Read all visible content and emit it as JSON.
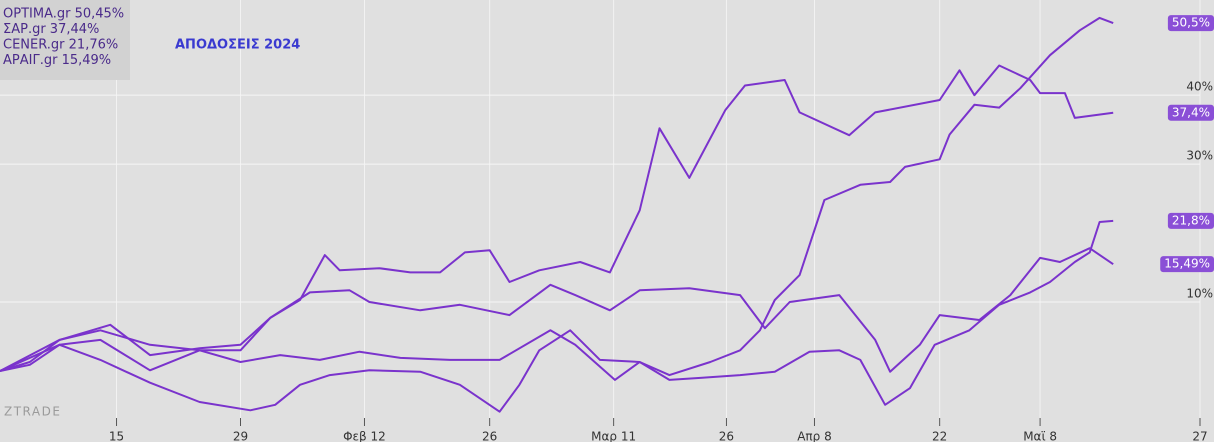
{
  "chart_data": {
    "type": "line",
    "title": "ΑΠΟΔΟΣΕΙΣ 2024",
    "watermark": "ZTRADE",
    "xlim": [
      0,
      96.8
    ],
    "ylim": [
      -10.3,
      53.8
    ],
    "xticks": [
      {
        "value": 9.4,
        "label": "15"
      },
      {
        "value": 19.4,
        "label": "29"
      },
      {
        "value": 29.4,
        "label": "Φεβ 12"
      },
      {
        "value": 39.5,
        "label": "26"
      },
      {
        "value": 49.5,
        "label": "Μαρ 11"
      },
      {
        "value": 58.6,
        "label": "26"
      },
      {
        "value": 65.7,
        "label": "Απρ 8"
      },
      {
        "value": 75.8,
        "label": "22"
      },
      {
        "value": 83.9,
        "label": "Μαϊ 8"
      },
      {
        "value": 96.8,
        "label": "27"
      }
    ],
    "yticks": [
      {
        "value": 10,
        "label": "10%"
      },
      {
        "value": 30,
        "label": "30%"
      },
      {
        "value": 40,
        "label": "40%"
      }
    ],
    "grid": true,
    "legend": "top-left",
    "series": [
      {
        "name": "OPTIMA.gr 50,45%",
        "color": "#7a33cc",
        "end_label": "50,5%",
        "x": [
          0,
          2.4,
          4.8,
          8.1,
          12.1,
          16.1,
          19.4,
          22.6,
          25.8,
          29,
          32.3,
          36.3,
          40.3,
          44.4,
          46.4,
          49.6,
          51.6,
          54,
          57.3,
          59.7,
          61.3,
          62.5,
          64.5,
          66.5,
          69.4,
          71.8,
          73,
          75.8,
          76.6,
          78.6,
          80.6,
          82.3,
          84.7,
          87.1,
          88.7,
          89.8
        ],
        "values": [
          0,
          0.9,
          3.8,
          4.5,
          0.1,
          3.0,
          1.3,
          2.3,
          1.6,
          2.8,
          1.9,
          1.6,
          1.6,
          5.9,
          3.8,
          -1.3,
          1.3,
          -0.6,
          1.3,
          3.0,
          5.9,
          10.3,
          13.9,
          24.8,
          27.0,
          27.4,
          29.6,
          30.7,
          34.3,
          38.6,
          38.2,
          41.0,
          45.8,
          49.4,
          51.2,
          50.45
        ]
      },
      {
        "name": "ΣΑΡ.gr 37,44%",
        "color": "#7a33cc",
        "end_label": "37,4%",
        "x": [
          0,
          2.4,
          4.8,
          8.1,
          12.1,
          16.1,
          19.4,
          21.8,
          24.2,
          26.2,
          27.4,
          30.6,
          33.1,
          35.5,
          37.5,
          39.5,
          41.1,
          43.5,
          46.8,
          49.2,
          51.6,
          53.2,
          55.6,
          58.5,
          60.1,
          63.3,
          64.5,
          68.5,
          70.6,
          75.8,
          77.4,
          78.6,
          80.6,
          83.1,
          83.9,
          85.9,
          86.7,
          89.8
        ],
        "values": [
          0,
          1.3,
          4.5,
          5.9,
          3.8,
          3.0,
          3.0,
          7.7,
          10.3,
          16.8,
          14.6,
          14.9,
          14.3,
          14.3,
          17.2,
          17.5,
          12.9,
          14.6,
          15.8,
          14.3,
          23.3,
          35.2,
          28.0,
          37.8,
          41.4,
          42.2,
          37.5,
          34.2,
          37.5,
          39.3,
          43.6,
          40.0,
          44.3,
          42.2,
          40.3,
          40.3,
          36.7,
          37.44
        ]
      },
      {
        "name": "CENER.gr 21,76%",
        "color": "#7a33cc",
        "end_label": "21,8%",
        "x": [
          0,
          4.8,
          8.1,
          12.1,
          16.1,
          20.2,
          22.2,
          24.2,
          26.6,
          29.8,
          33.9,
          37.1,
          40.3,
          41.9,
          43.5,
          46,
          48.4,
          51.6,
          54,
          56.5,
          59.7,
          62.5,
          65.3,
          67.7,
          69.4,
          71.4,
          73.4,
          75.4,
          78.2,
          80.6,
          83.1,
          84.7,
          86.7,
          87.9,
          88.7,
          89.8
        ],
        "values": [
          0,
          3.8,
          1.6,
          -1.7,
          -4.5,
          -5.7,
          -4.9,
          -2.0,
          -0.6,
          0.1,
          -0.1,
          -2.0,
          -5.9,
          -2.0,
          3.0,
          5.9,
          1.6,
          1.3,
          -1.3,
          -1.0,
          -0.6,
          -0.1,
          2.8,
          3.0,
          1.6,
          -4.9,
          -2.5,
          3.8,
          5.9,
          9.6,
          11.4,
          12.9,
          15.8,
          17.2,
          21.6,
          21.76
        ]
      },
      {
        "name": "ΑΡΑΙΓ.gr 15,49%",
        "color": "#7a33cc",
        "end_label": "15,49%",
        "x": [
          0,
          4.8,
          8.9,
          12.1,
          16.1,
          19.4,
          21.8,
          25,
          28.2,
          29.8,
          33.9,
          37.1,
          41.1,
          44.4,
          46.4,
          49.2,
          51.6,
          55.6,
          59.7,
          61.7,
          63.7,
          67.7,
          70.6,
          71.8,
          74.2,
          75.8,
          79,
          81.5,
          83.9,
          85.5,
          87.9,
          89.8
        ],
        "values": [
          0,
          4.5,
          6.7,
          2.3,
          3.3,
          3.8,
          7.7,
          11.4,
          11.7,
          10.0,
          8.8,
          9.6,
          8.1,
          12.5,
          11.0,
          8.8,
          11.7,
          12.0,
          11.0,
          6.2,
          10.0,
          11.0,
          4.5,
          -0.1,
          3.8,
          8.1,
          7.4,
          11.0,
          16.4,
          15.8,
          17.8,
          15.49
        ]
      }
    ]
  }
}
